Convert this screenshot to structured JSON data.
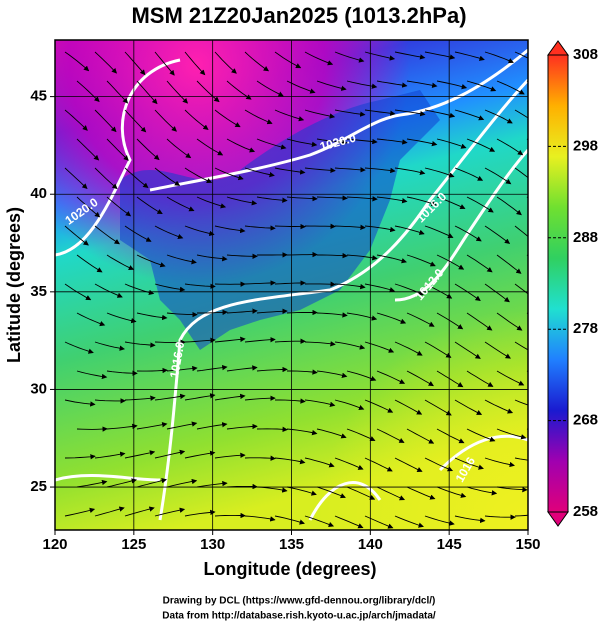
{
  "chart_data": {
    "type": "map",
    "title": "MSM 21Z20Jan2025 (1013.2hPa)",
    "xlabel": "Longitude (degrees)",
    "ylabel": "Latitude  (degrees)",
    "xlim": [
      120,
      150
    ],
    "xticks": [
      120,
      125,
      130,
      135,
      140,
      145,
      150
    ],
    "ylim": [
      22.8,
      47.9
    ],
    "yticks": [
      25,
      30,
      35,
      40,
      45
    ],
    "grid": true,
    "colorbar": {
      "lim": [
        258,
        308
      ],
      "ticks": [
        258,
        268,
        278,
        288,
        298,
        308
      ],
      "colors": [
        "#e0007a",
        "#a000b0",
        "#1a1ad0",
        "#2080ff",
        "#20e0d0",
        "#30d060",
        "#70e030",
        "#e8f020",
        "#ffb000",
        "#ff3020"
      ]
    },
    "contour_labels": [
      "1020.0",
      "1020.0",
      "1016.0",
      "1012.0",
      "1016.0",
      "1016"
    ],
    "footer": [
      "Drawing by DCL (https://www.gfd-dennou.org/library/dcl/)",
      "Data from http://database.rish.kyoto-u.ac.jp/arch/jmadata/"
    ]
  }
}
